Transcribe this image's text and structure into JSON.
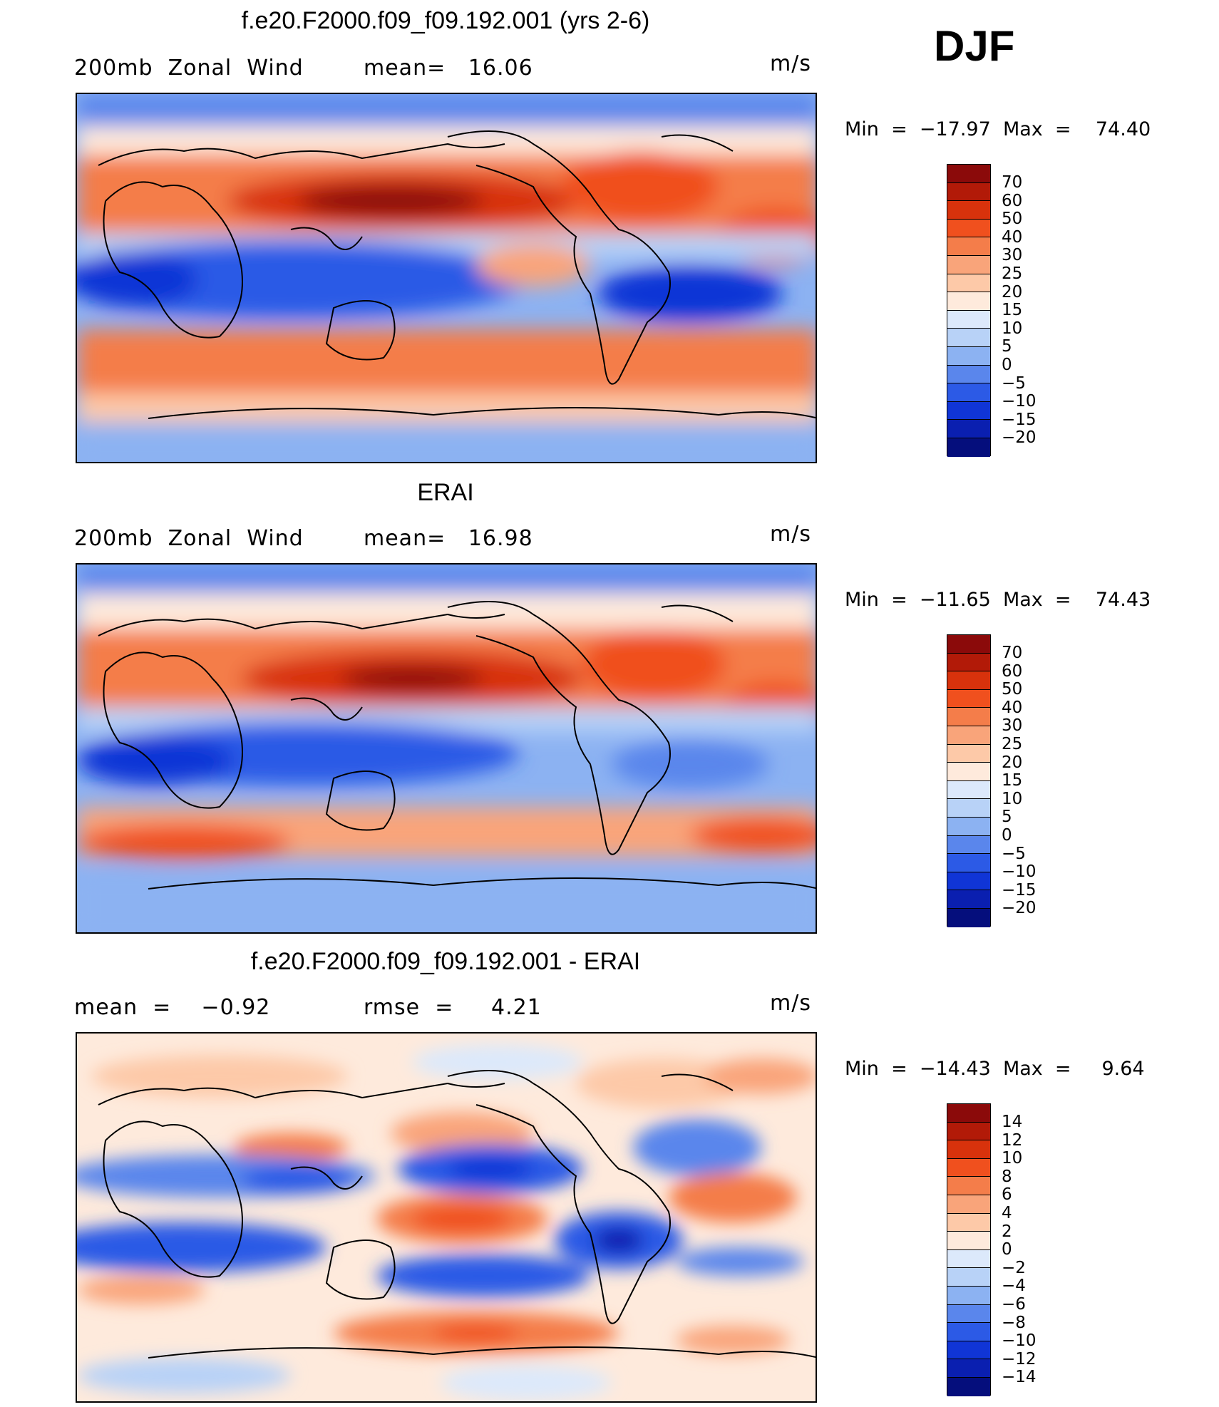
{
  "season": "DJF",
  "panels": [
    {
      "title": "f.e20.F2000.f09_f09.192.001 (yrs 2-6)",
      "left_text": "200mb  Zonal  Wind",
      "mid_text": "mean=   16.06",
      "units": "m/s",
      "minmax": "Min  =  −17.97  Max  =    74.40",
      "colorbar_labels": [
        "70",
        "60",
        "50",
        "40",
        "30",
        "25",
        "20",
        "15",
        "10",
        "5",
        "0",
        "−5",
        "−10",
        "−15",
        "−20"
      ]
    },
    {
      "title": "ERAI",
      "left_text": "200mb  Zonal  Wind",
      "mid_text": "mean=   16.98",
      "units": "m/s",
      "minmax": "Min  =  −11.65  Max  =    74.43",
      "colorbar_labels": [
        "70",
        "60",
        "50",
        "40",
        "30",
        "25",
        "20",
        "15",
        "10",
        "5",
        "0",
        "−5",
        "−10",
        "−15",
        "−20"
      ]
    },
    {
      "title": "f.e20.F2000.f09_f09.192.001 - ERAI",
      "left_text": "mean  =    −0.92",
      "mid_text": "rmse  =     4.21",
      "units": "m/s",
      "minmax": "Min  =  −14.43  Max  =     9.64",
      "colorbar_labels": [
        "14",
        "12",
        "10",
        "8",
        "6",
        "4",
        "2",
        "0",
        "−2",
        "−4",
        "−6",
        "−8",
        "−10",
        "−12",
        "−14"
      ]
    }
  ],
  "colors": {
    "palette": [
      "#8b0a0a",
      "#b21a08",
      "#d8320c",
      "#f0501e",
      "#f47d4a",
      "#f9a47a",
      "#fdc9a8",
      "#feeadc",
      "#dce9fb",
      "#b8d2f7",
      "#8cb2f2",
      "#5a86ec",
      "#2c5ae6",
      "#1035d6",
      "#0a1fb0",
      "#050e7c"
    ]
  }
}
